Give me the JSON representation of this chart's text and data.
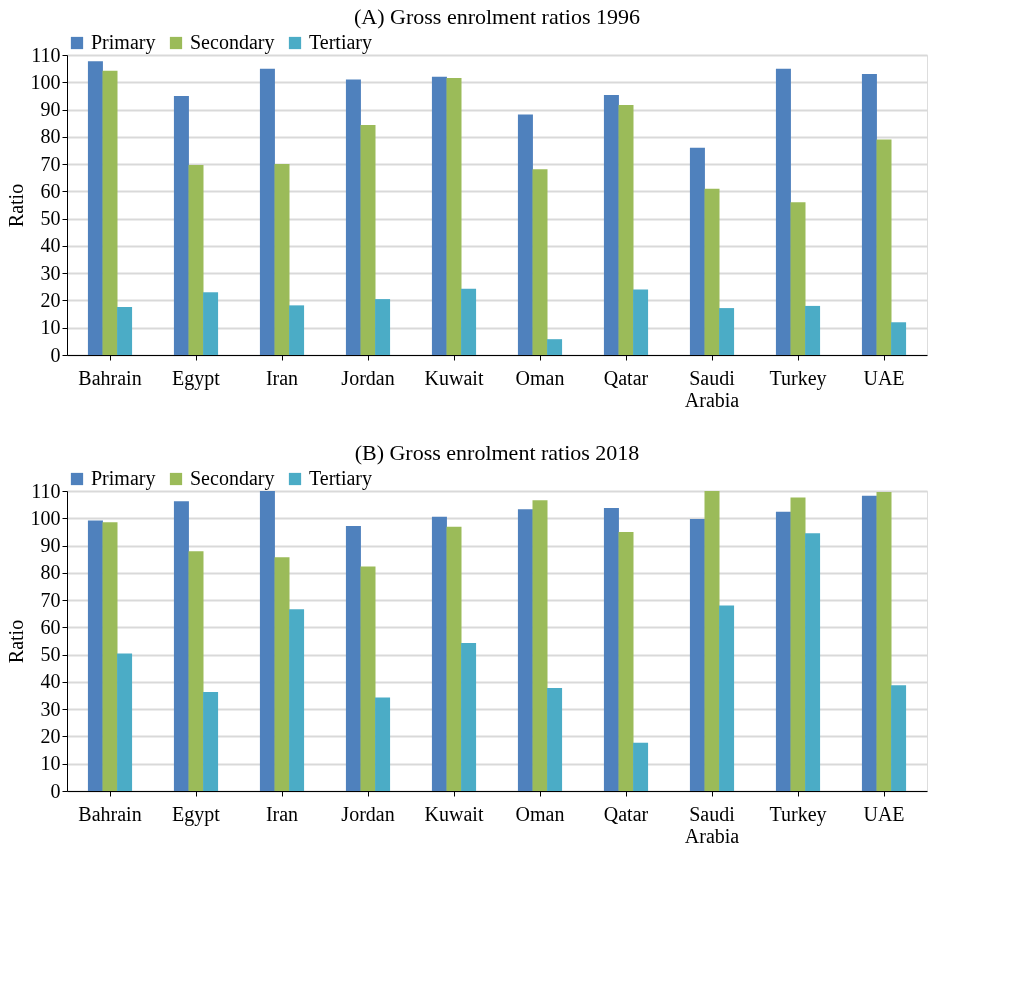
{
  "chart_data": [
    {
      "type": "bar",
      "title": "(A)   Gross enrolment ratios 1996",
      "ylabel": "Ratio",
      "categories": [
        "Bahrain",
        "Egypt",
        "Iran",
        "Jordan",
        "Kuwait",
        "Oman",
        "Qatar",
        "Saudi Arabia",
        "Turkey",
        "UAE"
      ],
      "series": [
        {
          "name": "Primary",
          "color": "#4f81bd",
          "values": [
            107.7,
            95,
            105,
            101,
            102,
            88.2,
            95.3,
            76,
            105,
            103
          ]
        },
        {
          "name": "Secondary",
          "color": "#9bbb59",
          "values": [
            104.2,
            69.7,
            70,
            84.3,
            101.6,
            68.1,
            91.7,
            61,
            56,
            79
          ]
        },
        {
          "name": "Tertiary",
          "color": "#4bacc6",
          "values": [
            17.6,
            23,
            18.2,
            20.5,
            24.3,
            5.8,
            24,
            17.2,
            18,
            12
          ]
        }
      ],
      "ylim": [
        0,
        110
      ],
      "yticks": [
        0,
        10,
        20,
        30,
        40,
        50,
        60,
        70,
        80,
        90,
        100,
        110
      ],
      "grid": "y",
      "legend": "top"
    },
    {
      "type": "bar",
      "title": "(B)   Gross enrolment ratios 2018",
      "ylabel": "Ratio",
      "categories": [
        "Bahrain",
        "Egypt",
        "Iran",
        "Jordan",
        "Kuwait",
        "Oman",
        "Qatar",
        "Saudi Arabia",
        "Turkey",
        "UAE"
      ],
      "series": [
        {
          "name": "Primary",
          "color": "#4f81bd",
          "values": [
            99.2,
            106.2,
            110,
            97.2,
            100.6,
            103.3,
            103.8,
            99.7,
            102.4,
            108.3
          ]
        },
        {
          "name": "Secondary",
          "color": "#9bbb59",
          "values": [
            98.5,
            87.9,
            85.7,
            82.3,
            96.9,
            106.6,
            95,
            110,
            107.6,
            109.6
          ]
        },
        {
          "name": "Tertiary",
          "color": "#4bacc6",
          "values": [
            50.4,
            36.3,
            66.6,
            34.3,
            54.3,
            37.8,
            17.7,
            68,
            94.5,
            38.8
          ]
        }
      ],
      "ylim": [
        0,
        110
      ],
      "yticks": [
        0,
        10,
        20,
        30,
        40,
        50,
        60,
        70,
        80,
        90,
        100,
        110
      ],
      "grid": "y",
      "legend": "top"
    }
  ]
}
